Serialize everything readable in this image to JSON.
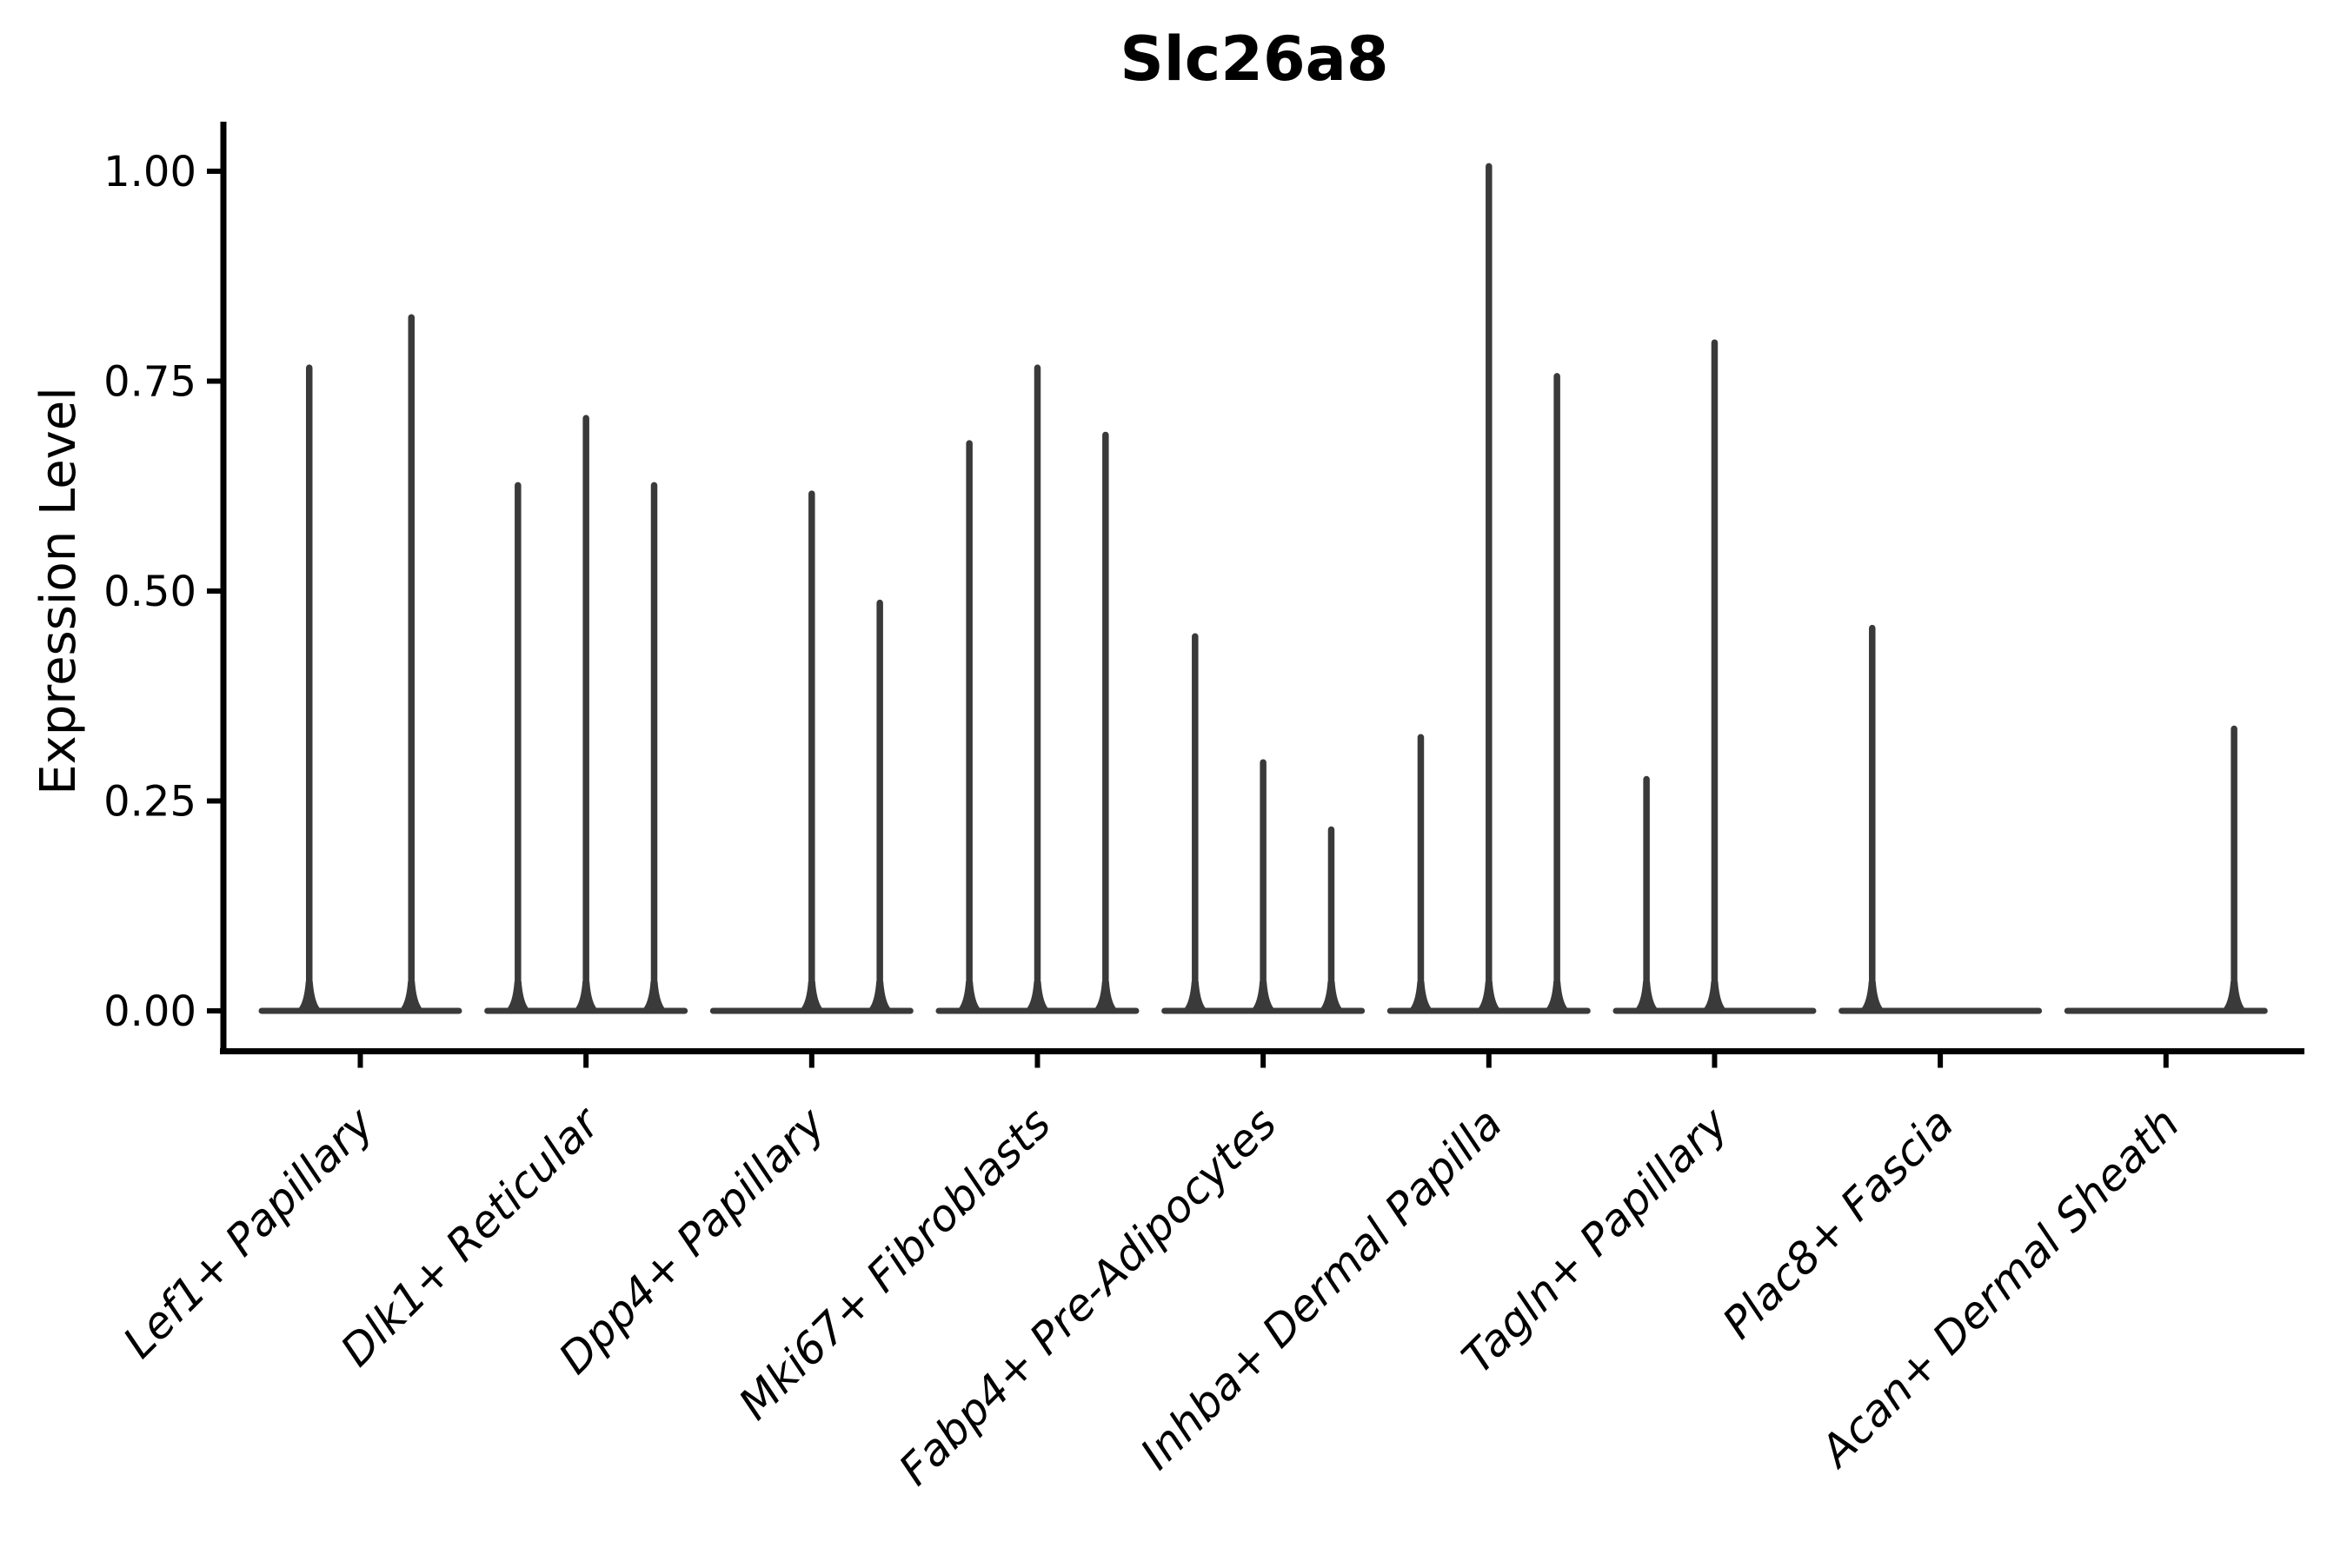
{
  "figure": {
    "title": "Slc26a8",
    "y_axis_label": "Expression Level",
    "background_color": "#ffffff",
    "axis_color": "#000000",
    "violin_color": "#3a3a3a"
  },
  "chart_data": {
    "type": "violin",
    "title": "Slc26a8",
    "xlabel": "",
    "ylabel": "Expression Level",
    "ylim": [
      -0.05,
      1.06
    ],
    "yticks": [
      0,
      0.25,
      0.5,
      0.75,
      1
    ],
    "ytick_labels": [
      "0.00",
      "0.25",
      "0.50",
      "0.75",
      "1.00"
    ],
    "grid": false,
    "legend_position": "none",
    "violin_style": "sparse-expression spikes: each violin is a flat base at 0 with a thin spike up to its maximum; 0 means fully flat violin (no spike)",
    "flat_violin_value": 0,
    "categories": [
      "Lef1+ Papillary",
      "Dlk1+ Reticular",
      "Dpp4+ Papillary",
      "Mki67+ Fibroblasts",
      "Fabp4+ Pre-Adipocytes",
      "Inhba+ Dermal Papilla",
      "Tagln+ Papillary",
      "Plac8+ Fascia",
      "Acan+ Dermal Sheath"
    ],
    "violins": [
      {
        "category": "Lef1+ Papillary",
        "spike_maxima": [
          0.77,
          0.83
        ]
      },
      {
        "category": "Dlk1+ Reticular",
        "spike_maxima": [
          0.63,
          0.71,
          0.63
        ]
      },
      {
        "category": "Dpp4+ Papillary",
        "spike_maxima": [
          0,
          0.62,
          0.49
        ]
      },
      {
        "category": "Mki67+ Fibroblasts",
        "spike_maxima": [
          0.68,
          0.77,
          0.69
        ]
      },
      {
        "category": "Fabp4+ Pre-Adipocytes",
        "spike_maxima": [
          0.45,
          0.3,
          0.22
        ]
      },
      {
        "category": "Inhba+ Dermal Papilla",
        "spike_maxima": [
          0.33,
          1.01,
          0.76
        ]
      },
      {
        "category": "Tagln+ Papillary",
        "spike_maxima": [
          0.28,
          0.8,
          0
        ]
      },
      {
        "category": "Plac8+ Fascia",
        "spike_maxima": [
          0.46,
          0,
          0
        ]
      },
      {
        "category": "Acan+ Dermal Sheath",
        "spike_maxima": [
          0,
          0,
          0.34
        ]
      }
    ]
  }
}
